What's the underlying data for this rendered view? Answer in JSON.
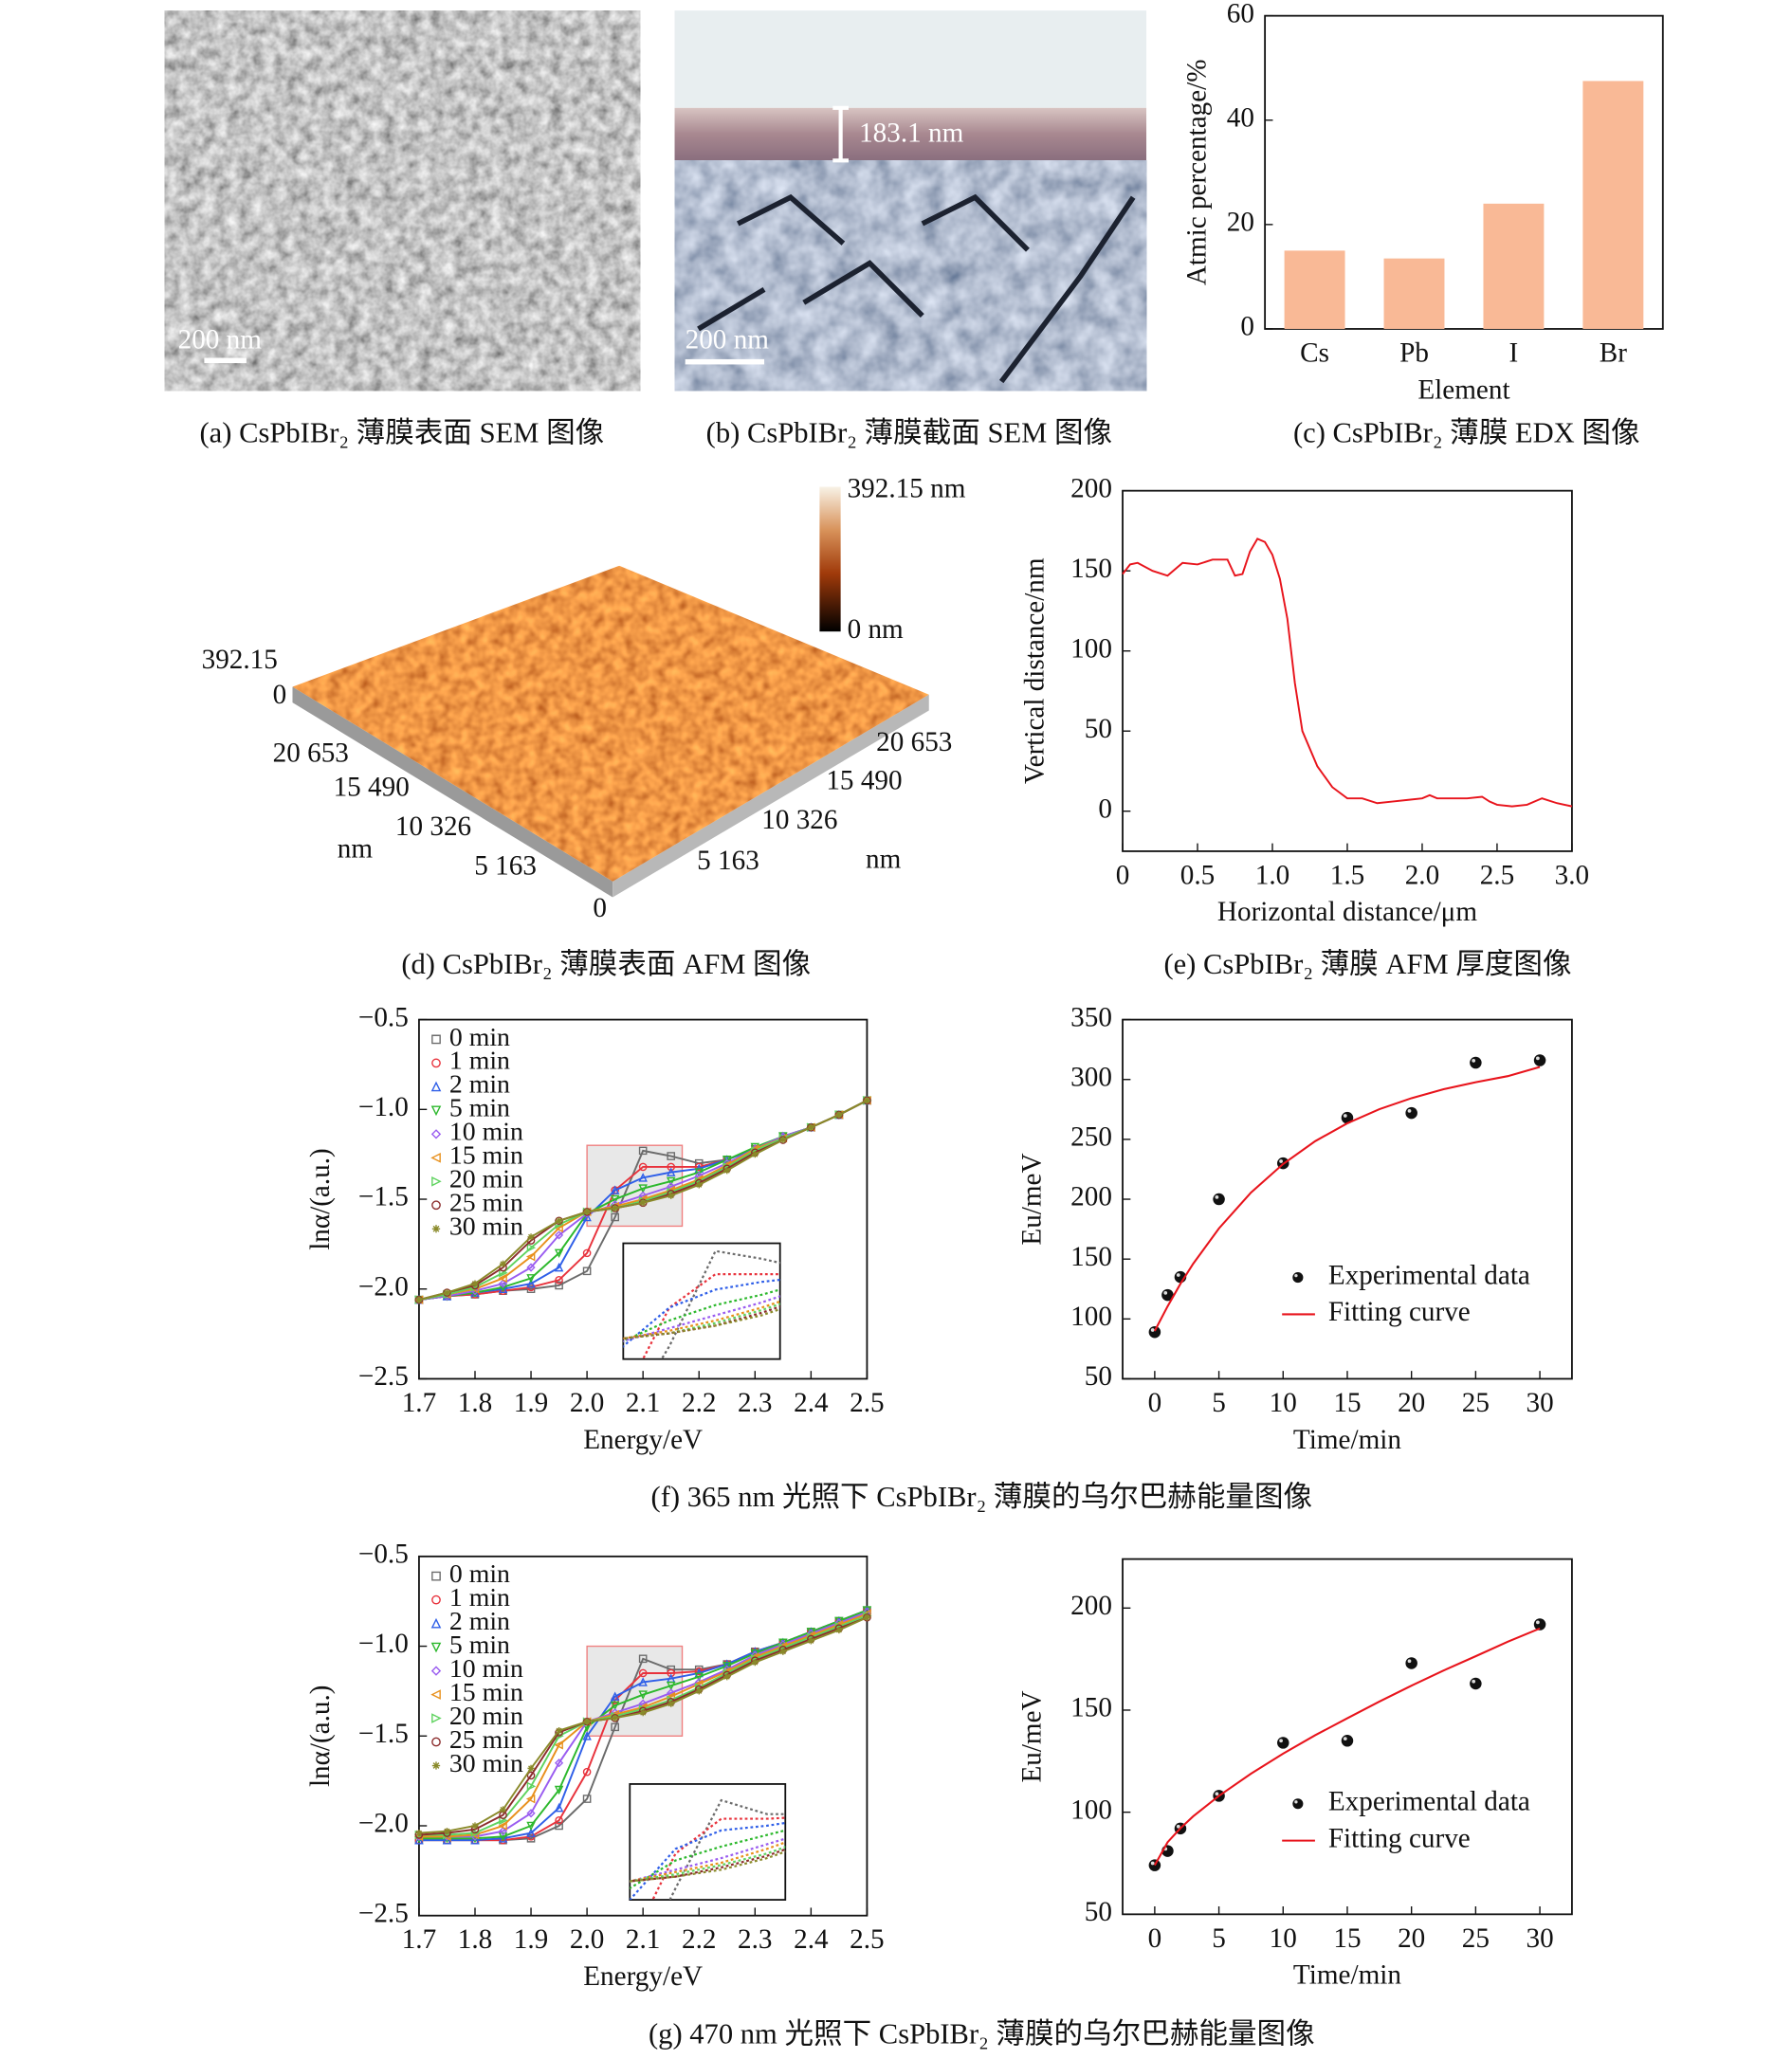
{
  "captions": [
    "(a) CsPbIBr₂ 薄膜表面 SEM 图像",
    "(b) CsPbIBr₂ 薄膜截面 SEM 图像",
    "(c) CsPbIBr₂ 薄膜 EDX 图像",
    "(d) CsPbIBr₂ 薄膜表面 AFM 图像",
    "(e) CsPbIBr₂ 薄膜 AFM 厚度图像",
    "(f) 365 nm 光照下 CsPbIBr₂ 薄膜的乌尔巴赫能量图像",
    "(g) 470 nm 光照下 CsPbIBr₂ 薄膜的乌尔巴赫能量图像"
  ],
  "images": {
    "sem_surface": {
      "scale_bar": "200 nm"
    },
    "sem_cross_section": {
      "scale_bar": "200 nm",
      "thickness": "183.1 nm"
    },
    "afm_surface": {
      "colorbar_max": "392.15 nm",
      "colorbar_min": "0 nm",
      "z_labels": [
        "392.15",
        "0"
      ],
      "left_labels": [
        "20 653",
        "15 490",
        "10 326",
        "5 163"
      ],
      "left_unit": "nm",
      "origin": "0",
      "right_labels": [
        "20 653",
        "15 490",
        "10 326",
        "5 163"
      ],
      "right_unit": "nm"
    }
  },
  "chart_data": [
    {
      "type": "bar",
      "categories": [
        "Cs",
        "Pb",
        "I",
        "Br"
      ],
      "values": [
        15,
        13.5,
        24,
        47.5
      ],
      "color": "#f9b996",
      "xlabel": "Element",
      "ylabel": "Atmic percentage/%",
      "ylim": [
        0,
        60
      ],
      "yticks": [
        0,
        20,
        40,
        60
      ]
    },
    {
      "type": "line",
      "xlabel": "Horizontal distance/μm",
      "ylabel": "Vertical distance/nm",
      "x": [
        0,
        0.05,
        0.1,
        0.2,
        0.3,
        0.4,
        0.5,
        0.6,
        0.7,
        0.75,
        0.8,
        0.85,
        0.9,
        0.95,
        1.0,
        1.05,
        1.1,
        1.15,
        1.2,
        1.3,
        1.4,
        1.5,
        1.6,
        1.7,
        1.8,
        1.9,
        2.0,
        2.05,
        2.1,
        2.2,
        2.3,
        2.4,
        2.45,
        2.5,
        2.6,
        2.7,
        2.8,
        2.9,
        3.0
      ],
      "series": [
        {
          "color": "#e8141c",
          "values": [
            148,
            154,
            155,
            150,
            147,
            155,
            154,
            157,
            157,
            147,
            148,
            162,
            170,
            168,
            160,
            145,
            120,
            80,
            50,
            28,
            15,
            8,
            8,
            5,
            6,
            7,
            8,
            10,
            8,
            8,
            8,
            9,
            6,
            4,
            3,
            4,
            8,
            5,
            3
          ]
        }
      ],
      "xlim": [
        0,
        3
      ],
      "xticks": [
        0,
        0.5,
        {
          "value": 1,
          "label": "1.0"
        },
        1.5,
        {
          "value": 2,
          "label": "2.0"
        },
        2.5,
        {
          "value": 3,
          "label": "3.0"
        }
      ],
      "ylim": [
        -25,
        200
      ],
      "yticks": [
        0,
        50,
        100,
        150,
        200
      ]
    },
    {
      "type": "line",
      "xlabel": "Energy/eV",
      "ylabel": "lnα/(a.u.)",
      "x": [
        1.7,
        1.75,
        1.8,
        1.85,
        1.9,
        1.95,
        2.0,
        2.05,
        2.1,
        2.15,
        2.2,
        2.25,
        2.3,
        2.35,
        2.4,
        2.45,
        2.5
      ],
      "series": [
        {
          "name": "0 min",
          "color": "#6b6b6b",
          "marker": "square",
          "values": [
            -2.06,
            -2.04,
            -2.03,
            -2.01,
            -2.0,
            -1.98,
            -1.9,
            -1.6,
            -1.23,
            -1.26,
            -1.3,
            -1.28,
            -1.22,
            -1.15,
            -1.1,
            -1.03,
            -0.95
          ]
        },
        {
          "name": "1 min",
          "color": "#e8323c",
          "marker": "circle",
          "values": [
            -2.06,
            -2.04,
            -2.03,
            -2.01,
            -1.99,
            -1.95,
            -1.8,
            -1.45,
            -1.32,
            -1.32,
            -1.32,
            -1.28,
            -1.22,
            -1.15,
            -1.1,
            -1.03,
            -0.95
          ]
        },
        {
          "name": "2 min",
          "color": "#2f5fe8",
          "marker": "triangle-up",
          "values": [
            -2.06,
            -2.04,
            -2.02,
            -2.0,
            -1.97,
            -1.88,
            -1.6,
            -1.45,
            -1.38,
            -1.35,
            -1.33,
            -1.28,
            -1.22,
            -1.15,
            -1.1,
            -1.03,
            -0.95
          ]
        },
        {
          "name": "5 min",
          "color": "#2cb82c",
          "marker": "triangle-down",
          "values": [
            -2.06,
            -2.04,
            -2.02,
            -1.99,
            -1.94,
            -1.8,
            -1.58,
            -1.5,
            -1.44,
            -1.4,
            -1.35,
            -1.28,
            -1.21,
            -1.15,
            -1.1,
            -1.03,
            -0.95
          ]
        },
        {
          "name": "10 min",
          "color": "#9a5cf0",
          "marker": "diamond",
          "values": [
            -2.06,
            -2.04,
            -2.01,
            -1.97,
            -1.88,
            -1.7,
            -1.58,
            -1.53,
            -1.48,
            -1.43,
            -1.37,
            -1.3,
            -1.22,
            -1.15,
            -1.1,
            -1.03,
            -0.95
          ]
        },
        {
          "name": "15 min",
          "color": "#e8901c",
          "marker": "triangle-left",
          "values": [
            -2.06,
            -2.03,
            -2.0,
            -1.94,
            -1.82,
            -1.66,
            -1.57,
            -1.54,
            -1.5,
            -1.45,
            -1.39,
            -1.31,
            -1.22,
            -1.16,
            -1.1,
            -1.03,
            -0.95
          ]
        },
        {
          "name": "20 min",
          "color": "#5fd35f",
          "marker": "triangle-right",
          "values": [
            -2.06,
            -2.03,
            -1.99,
            -1.91,
            -1.77,
            -1.64,
            -1.57,
            -1.55,
            -1.51,
            -1.46,
            -1.4,
            -1.32,
            -1.23,
            -1.16,
            -1.1,
            -1.03,
            -0.95
          ]
        },
        {
          "name": "25 min",
          "color": "#8b2c2c",
          "marker": "circle",
          "values": [
            -2.06,
            -2.02,
            -1.98,
            -1.88,
            -1.73,
            -1.62,
            -1.57,
            -1.55,
            -1.52,
            -1.47,
            -1.41,
            -1.33,
            -1.24,
            -1.17,
            -1.1,
            -1.03,
            -0.95
          ]
        },
        {
          "name": "30 min",
          "color": "#8a8a2a",
          "marker": "star",
          "values": [
            -2.06,
            -2.02,
            -1.97,
            -1.86,
            -1.71,
            -1.62,
            -1.57,
            -1.55,
            -1.52,
            -1.48,
            -1.42,
            -1.34,
            -1.25,
            -1.17,
            -1.1,
            -1.03,
            -0.95
          ]
        }
      ],
      "inset": {
        "xlim": [
          2.0,
          2.17
        ],
        "ylim": [
          -1.65,
          -1.2
        ]
      },
      "xlim": [
        1.7,
        2.5
      ],
      "xticks": [
        1.7,
        1.8,
        1.9,
        {
          "value": 2,
          "label": "2.0"
        },
        2.1,
        2.2,
        2.3,
        2.4,
        2.5
      ],
      "ylim": [
        -2.5,
        -0.5
      ],
      "yticks": [
        {
          "value": -2.5,
          "label": "−2.5"
        },
        {
          "value": -2,
          "label": "−2.0"
        },
        {
          "value": -1.5,
          "label": "−1.5"
        },
        {
          "value": -1,
          "label": "−1.0"
        },
        {
          "value": -0.5,
          "label": "−0.5"
        }
      ]
    },
    {
      "type": "scatter",
      "xlabel": "Time/min",
      "ylabel": "Eu/meV",
      "series": [
        {
          "name": "Experimental data",
          "color": "#111111",
          "marker": "ball",
          "x": [
            0,
            1,
            2,
            5,
            10,
            15,
            20,
            25,
            30
          ],
          "values": [
            89,
            120,
            135,
            200,
            230,
            268,
            272,
            314,
            316
          ]
        },
        {
          "name": "Fitting curve",
          "color": "#e8141c",
          "x": [
            0,
            1,
            2,
            3,
            5,
            7.5,
            10,
            12.5,
            15,
            17.5,
            20,
            22.5,
            25,
            27.5,
            30
          ],
          "values": [
            90,
            110.5,
            129.3,
            146.2,
            175.6,
            205.6,
            229.4,
            248.5,
            263.4,
            275.2,
            284.4,
            291.9,
            297.7,
            302.8,
            310.5
          ]
        }
      ],
      "xlim": [
        -2.5,
        32.5
      ],
      "xticks": [
        0,
        5,
        10,
        15,
        20,
        25,
        30
      ],
      "ylim": [
        50,
        350
      ],
      "yticks": [
        50,
        100,
        150,
        200,
        250,
        300,
        350
      ]
    },
    {
      "type": "line",
      "xlabel": "Energy/eV",
      "ylabel": "lnα/(a.u.)",
      "x": [
        1.7,
        1.75,
        1.8,
        1.85,
        1.9,
        1.95,
        2.0,
        2.05,
        2.1,
        2.15,
        2.2,
        2.25,
        2.3,
        2.35,
        2.4,
        2.45,
        2.5
      ],
      "series": [
        {
          "name": "0 min",
          "color": "#6b6b6b",
          "marker": "square",
          "values": [
            -2.08,
            -2.08,
            -2.08,
            -2.08,
            -2.07,
            -2.0,
            -1.85,
            -1.45,
            -1.07,
            -1.13,
            -1.13,
            -1.1,
            -1.03,
            -0.98,
            -0.92,
            -0.86,
            -0.8
          ]
        },
        {
          "name": "1 min",
          "color": "#e8323c",
          "marker": "circle",
          "values": [
            -2.08,
            -2.08,
            -2.08,
            -2.08,
            -2.06,
            -1.97,
            -1.7,
            -1.3,
            -1.15,
            -1.15,
            -1.14,
            -1.1,
            -1.03,
            -0.98,
            -0.92,
            -0.86,
            -0.8
          ]
        },
        {
          "name": "2 min",
          "color": "#2f5fe8",
          "marker": "triangle-up",
          "values": [
            -2.08,
            -2.08,
            -2.08,
            -2.07,
            -2.04,
            -1.9,
            -1.5,
            -1.28,
            -1.2,
            -1.18,
            -1.15,
            -1.1,
            -1.03,
            -0.98,
            -0.92,
            -0.86,
            -0.8
          ]
        },
        {
          "name": "5 min",
          "color": "#2cb82c",
          "marker": "triangle-down",
          "values": [
            -2.07,
            -2.07,
            -2.07,
            -2.06,
            -2.0,
            -1.8,
            -1.45,
            -1.33,
            -1.27,
            -1.22,
            -1.17,
            -1.11,
            -1.04,
            -0.98,
            -0.92,
            -0.86,
            -0.8
          ]
        },
        {
          "name": "10 min",
          "color": "#9a5cf0",
          "marker": "diamond",
          "values": [
            -2.06,
            -2.06,
            -2.06,
            -2.03,
            -1.93,
            -1.65,
            -1.42,
            -1.37,
            -1.32,
            -1.26,
            -1.2,
            -1.13,
            -1.05,
            -0.99,
            -0.93,
            -0.87,
            -0.81
          ]
        },
        {
          "name": "15 min",
          "color": "#e8901c",
          "marker": "triangle-left",
          "values": [
            -2.06,
            -2.06,
            -2.05,
            -2.0,
            -1.85,
            -1.55,
            -1.42,
            -1.38,
            -1.34,
            -1.28,
            -1.21,
            -1.14,
            -1.06,
            -1.0,
            -0.94,
            -0.88,
            -0.82
          ]
        },
        {
          "name": "20 min",
          "color": "#5fd35f",
          "marker": "triangle-right",
          "values": [
            -2.05,
            -2.05,
            -2.04,
            -1.97,
            -1.78,
            -1.5,
            -1.42,
            -1.39,
            -1.35,
            -1.3,
            -1.23,
            -1.15,
            -1.07,
            -1.01,
            -0.95,
            -0.89,
            -0.83
          ]
        },
        {
          "name": "25 min",
          "color": "#8b2c2c",
          "marker": "circle",
          "values": [
            -2.05,
            -2.04,
            -2.02,
            -1.94,
            -1.72,
            -1.48,
            -1.42,
            -1.4,
            -1.36,
            -1.31,
            -1.24,
            -1.16,
            -1.08,
            -1.02,
            -0.96,
            -0.9,
            -0.84
          ]
        },
        {
          "name": "30 min",
          "color": "#8a8a2a",
          "marker": "star",
          "values": [
            -2.04,
            -2.03,
            -2.0,
            -1.91,
            -1.68,
            -1.47,
            -1.42,
            -1.4,
            -1.37,
            -1.32,
            -1.25,
            -1.17,
            -1.09,
            -1.03,
            -0.97,
            -0.91,
            -0.84
          ]
        }
      ],
      "inset": {
        "xlim": [
          2.0,
          2.17
        ],
        "ylim": [
          -1.5,
          -1.0
        ]
      },
      "xlim": [
        1.7,
        2.5
      ],
      "xticks": [
        1.7,
        1.8,
        1.9,
        {
          "value": 2,
          "label": "2.0"
        },
        2.1,
        2.2,
        2.3,
        2.4,
        2.5
      ],
      "ylim": [
        -2.5,
        -0.5
      ],
      "yticks": [
        {
          "value": -2.5,
          "label": "−2.5"
        },
        {
          "value": -2,
          "label": "−2.0"
        },
        {
          "value": -1.5,
          "label": "−1.5"
        },
        {
          "value": -1,
          "label": "−1.0"
        },
        {
          "value": -0.5,
          "label": "−0.5"
        }
      ]
    },
    {
      "type": "scatter",
      "xlabel": "Time/min",
      "ylabel": "Eu/meV",
      "series": [
        {
          "name": "Experimental data",
          "color": "#111111",
          "marker": "ball",
          "x": [
            0,
            1,
            2,
            5,
            10,
            15,
            20,
            25,
            30
          ],
          "values": [
            74,
            81,
            92,
            108,
            134,
            135,
            173,
            163,
            192
          ]
        },
        {
          "name": "Fitting curve",
          "color": "#e8141c",
          "x": [
            0,
            1,
            2,
            3,
            5,
            7.5,
            10,
            12.5,
            15,
            17.5,
            20,
            22.5,
            25,
            27.5,
            30
          ],
          "values": [
            74,
            85.3,
            92.1,
            98,
            108,
            118.9,
            128.7,
            137.7,
            146,
            154.2,
            162,
            169.4,
            176.4,
            183.5,
            190
          ]
        }
      ],
      "xlim": [
        -2.5,
        32.5
      ],
      "xticks": [
        0,
        5,
        10,
        15,
        20,
        25,
        30
      ],
      "ylim": [
        50,
        224
      ],
      "yticks": [
        50,
        100,
        150,
        200
      ]
    }
  ]
}
